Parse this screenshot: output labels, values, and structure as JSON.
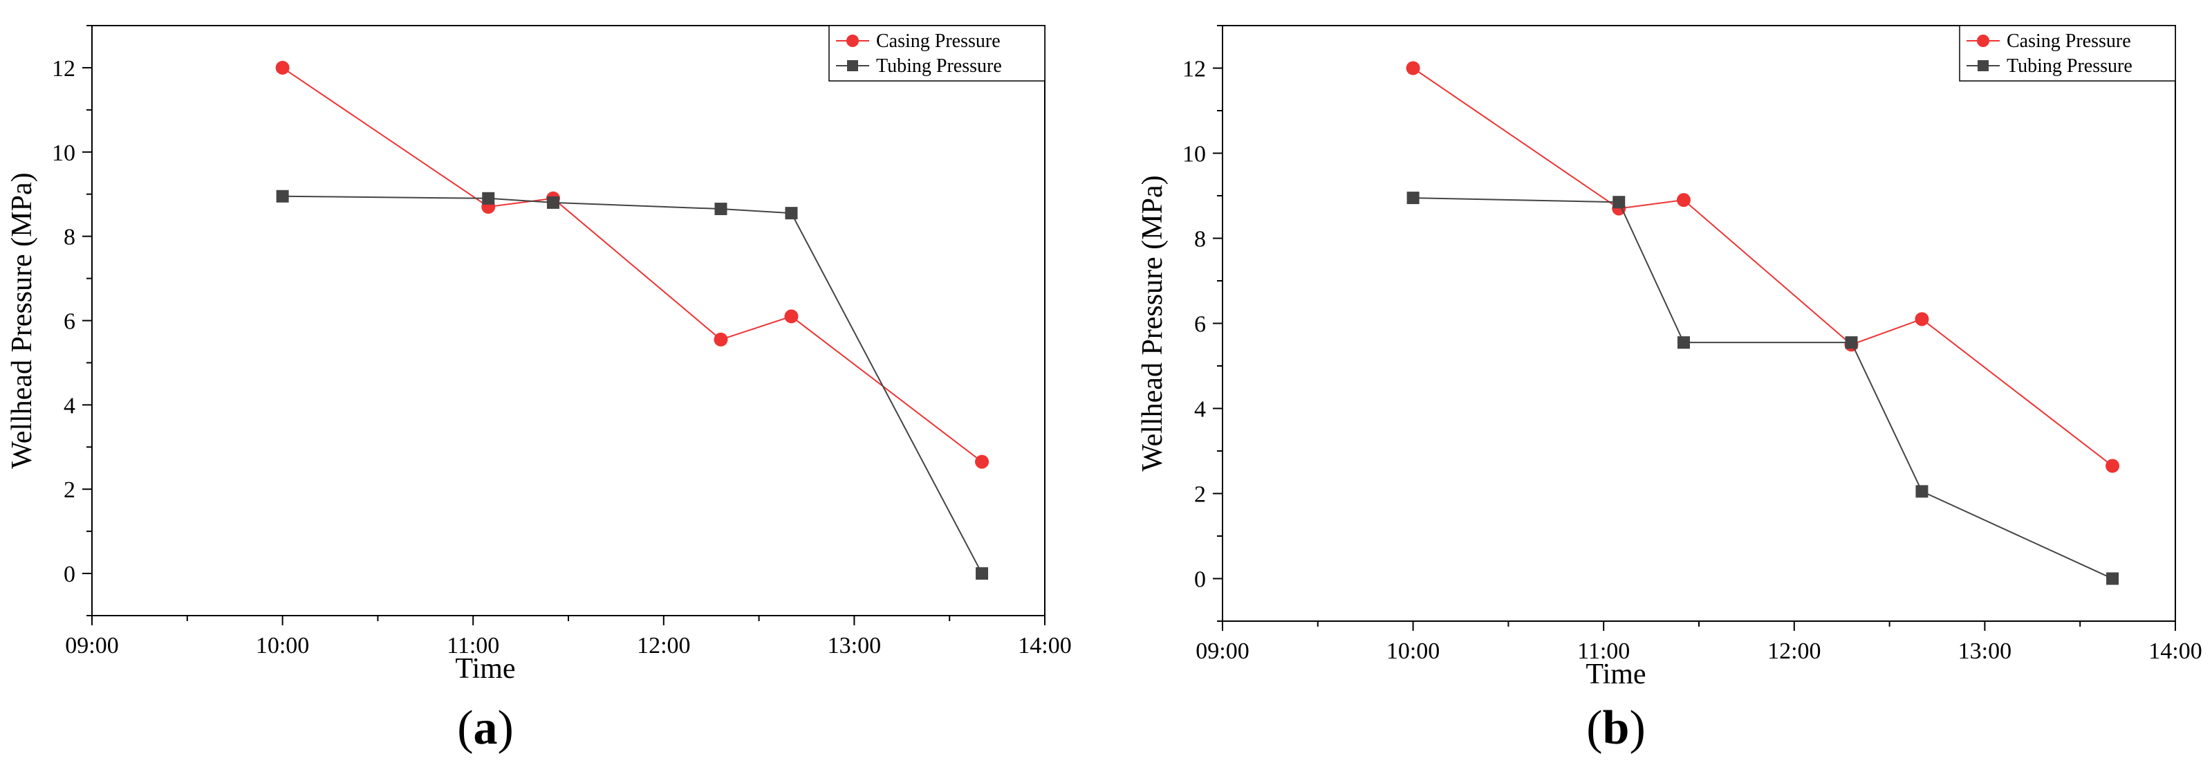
{
  "chart_data": [
    {
      "type": "line",
      "panel_label": "(a)",
      "panel_letter": "a",
      "xlabel": "Time",
      "ylabel": "Wellhead Pressure (MPa)",
      "x_ticks": [
        "09:00",
        "10:00",
        "11:00",
        "12:00",
        "13:00",
        "14:00"
      ],
      "xlim": [
        9.0,
        14.0
      ],
      "ylim": [
        -1.0,
        13.0
      ],
      "y_ticks": [
        0,
        2,
        4,
        6,
        8,
        10,
        12
      ],
      "legend_position": "top-right",
      "series": [
        {
          "name": "Casing Pressure",
          "color": "#ee3333",
          "marker": "circle",
          "x": [
            10.0,
            11.08,
            11.42,
            12.3,
            12.67,
            13.67
          ],
          "y": [
            12.0,
            8.7,
            8.9,
            5.55,
            6.1,
            2.65
          ]
        },
        {
          "name": "Tubing Pressure",
          "color": "#444444",
          "marker": "square",
          "x": [
            10.0,
            11.08,
            11.42,
            12.3,
            12.67,
            13.67
          ],
          "y": [
            8.95,
            8.9,
            8.8,
            8.65,
            8.55,
            0.0
          ]
        }
      ]
    },
    {
      "type": "line",
      "panel_label": "(b)",
      "panel_letter": "b",
      "xlabel": "Time",
      "ylabel": "Wellhead Pressure (MPa)",
      "x_ticks": [
        "09:00",
        "10:00",
        "11:00",
        "12:00",
        "13:00",
        "14:00"
      ],
      "xlim": [
        9.0,
        14.0
      ],
      "ylim": [
        -1.0,
        13.0
      ],
      "y_ticks": [
        0,
        2,
        4,
        6,
        8,
        10,
        12
      ],
      "legend_position": "top-right",
      "series": [
        {
          "name": "Casing Pressure",
          "color": "#ee3333",
          "marker": "circle",
          "x": [
            10.0,
            11.08,
            11.42,
            12.3,
            12.67,
            13.67
          ],
          "y": [
            12.0,
            8.7,
            8.9,
            5.5,
            6.1,
            2.65
          ]
        },
        {
          "name": "Tubing Pressure",
          "color": "#444444",
          "marker": "square",
          "x": [
            10.0,
            11.08,
            11.42,
            12.3,
            12.67,
            13.67
          ],
          "y": [
            8.95,
            8.85,
            5.55,
            5.55,
            2.05,
            0.0
          ]
        }
      ]
    }
  ]
}
